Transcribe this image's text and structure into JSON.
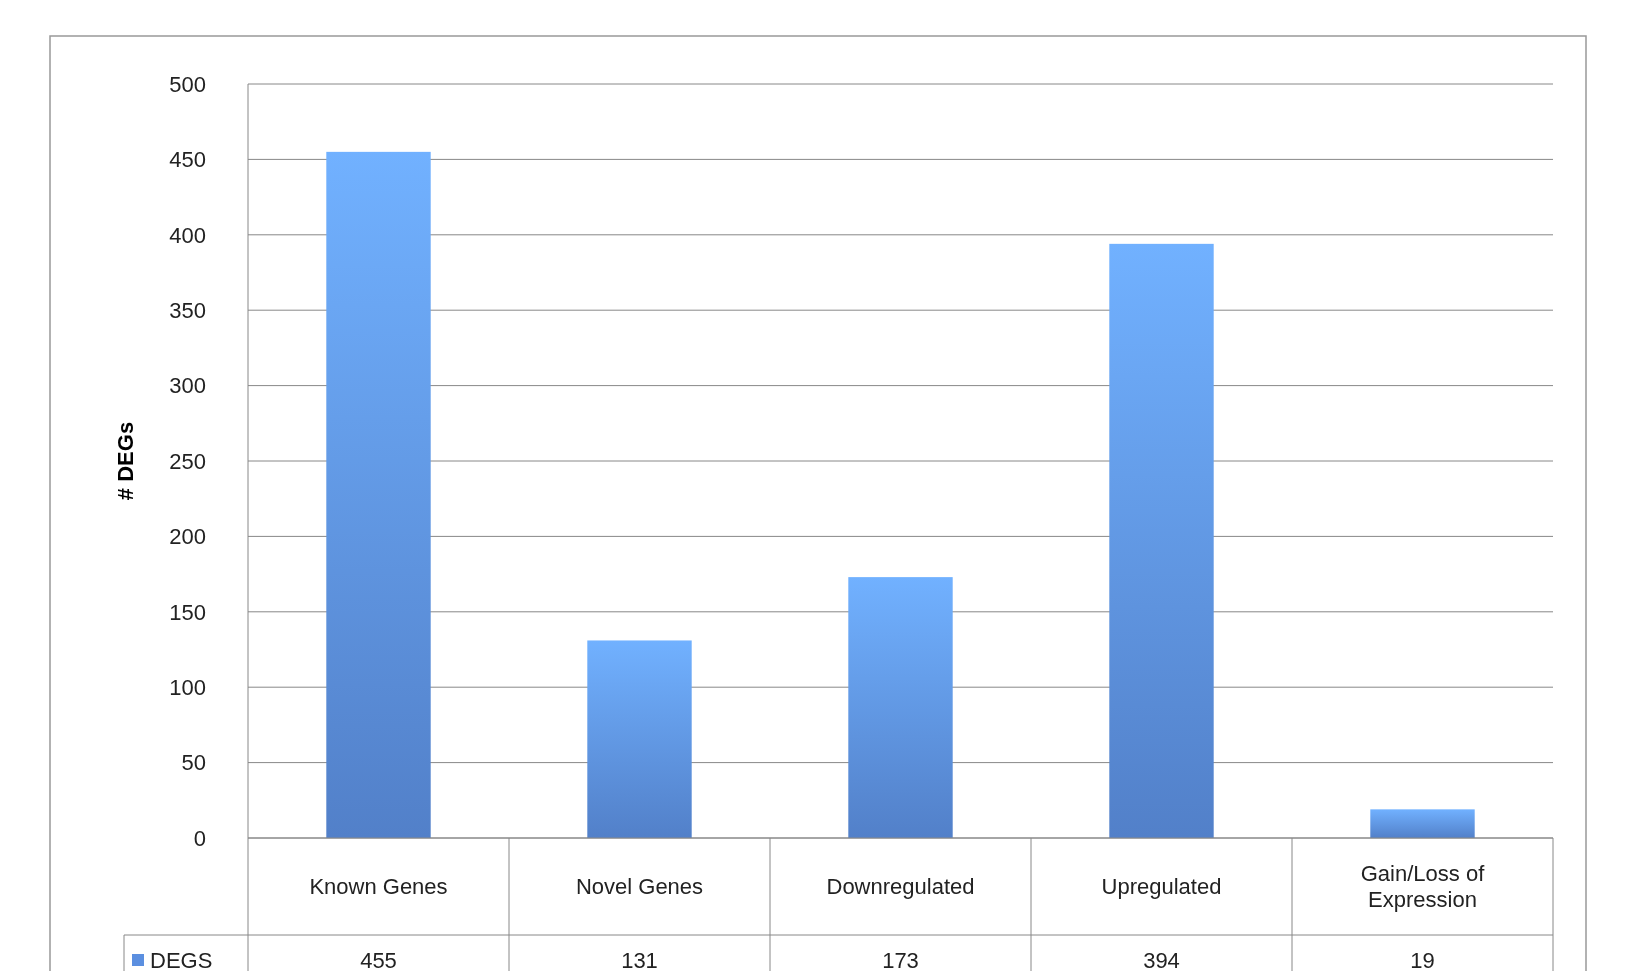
{
  "chart_data": {
    "type": "bar",
    "ylabel": "# DEGs",
    "categories": [
      "Known Genes",
      "Novel Genes",
      "Downregulated",
      "Upregulated",
      "Gain/Loss of Expression"
    ],
    "series": [
      {
        "name": "DEGS",
        "color": "#5b8fe0",
        "values": [
          455,
          131,
          173,
          394,
          19
        ]
      }
    ],
    "ylim": [
      0,
      500
    ],
    "yticks": [
      0,
      50,
      100,
      150,
      200,
      250,
      300,
      350,
      400,
      450,
      500
    ],
    "grid": "y",
    "data_labels": true,
    "legend": "bottom left"
  }
}
